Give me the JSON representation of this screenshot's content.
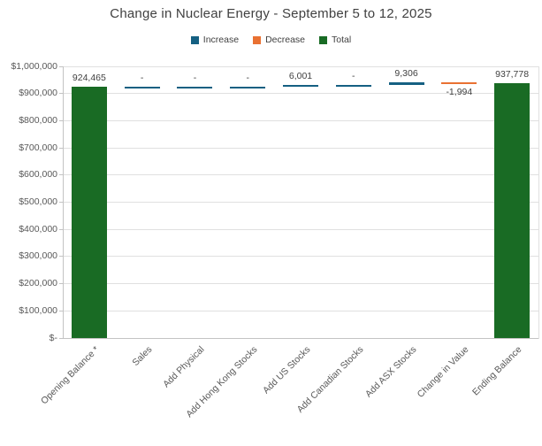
{
  "title": "Change in Nuclear Energy - September 5 to 12, 2025",
  "legend": [
    {
      "id": "increase",
      "label": "Increase",
      "color": "#156082"
    },
    {
      "id": "decrease",
      "label": "Decrease",
      "color": "#E97132"
    },
    {
      "id": "total",
      "label": "Total",
      "color": "#196B24"
    }
  ],
  "chart_data": {
    "type": "bar",
    "subtype": "waterfall",
    "title": "Change in Nuclear Energy - September 5 to 12, 2025",
    "categories": [
      "Opening Balance *",
      "Sales",
      "Add Physical",
      "Add Hong Kong Stocks",
      "Add US Stocks",
      "Add Canadian Stocks",
      "Add ASX Stocks",
      "Change in Value",
      "Ending Balance"
    ],
    "points": [
      {
        "category": "Opening Balance *",
        "kind": "total",
        "value": 924465,
        "label": "924,465"
      },
      {
        "category": "Sales",
        "kind": "increase",
        "value": 0,
        "label": "-"
      },
      {
        "category": "Add Physical",
        "kind": "increase",
        "value": 0,
        "label": "-"
      },
      {
        "category": "Add Hong Kong Stocks",
        "kind": "increase",
        "value": 0,
        "label": "-"
      },
      {
        "category": "Add US Stocks",
        "kind": "increase",
        "value": 6001,
        "label": "6,001"
      },
      {
        "category": "Add Canadian Stocks",
        "kind": "increase",
        "value": 0,
        "label": "-"
      },
      {
        "category": "Add ASX Stocks",
        "kind": "increase",
        "value": 9306,
        "label": "9,306"
      },
      {
        "category": "Change in Value",
        "kind": "decrease",
        "value": -1994,
        "label": "-1,994"
      },
      {
        "category": "Ending Balance",
        "kind": "total",
        "value": 937778,
        "label": "937,778"
      }
    ],
    "y_axis": {
      "min": 0,
      "max": 1000000,
      "step": 100000,
      "tick_labels": [
        "$-",
        "$100,000",
        "$200,000",
        "$300,000",
        "$400,000",
        "$500,000",
        "$600,000",
        "$700,000",
        "$800,000",
        "$900,000",
        "$1,000,000"
      ]
    },
    "colors": {
      "increase": "#156082",
      "decrease": "#E97132",
      "total": "#196B24"
    },
    "legend_position": "top",
    "grid": true
  }
}
